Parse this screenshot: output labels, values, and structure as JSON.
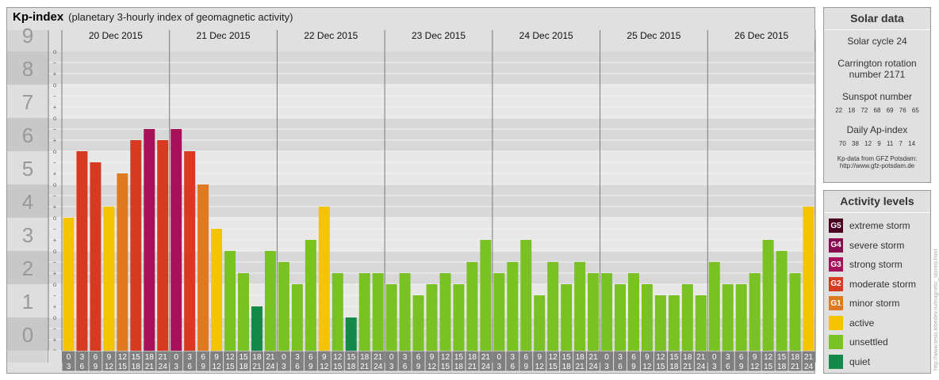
{
  "header": {
    "title": "Kp-index",
    "subtitle": "(planetary 3-hourly index of geomagnetic activity)"
  },
  "chart_data": {
    "type": "bar",
    "title": "Kp-index",
    "subtitle": "(planetary 3-hourly index of geomagnetic activity)",
    "ylim": [
      0,
      9
    ],
    "ytick_labels": [
      "0",
      "1",
      "2",
      "3",
      "4",
      "5",
      "6",
      "7",
      "8",
      "9"
    ],
    "minor_tick_labels": [
      "o",
      "+",
      "−"
    ],
    "days": [
      "20 Dec 2015",
      "21 Dec 2015",
      "22 Dec 2015",
      "23 Dec 2015",
      "24 Dec 2015",
      "25 Dec 2015",
      "26 Dec 2015"
    ],
    "hour_labels": [
      [
        "0",
        "3"
      ],
      [
        "3",
        "6"
      ],
      [
        "6",
        "9"
      ],
      [
        "9",
        "12"
      ],
      [
        "12",
        "15"
      ],
      [
        "15",
        "18"
      ],
      [
        "18",
        "21"
      ],
      [
        "21",
        "24"
      ]
    ],
    "values": [
      4.0,
      6.0,
      5.667,
      4.333,
      5.333,
      6.333,
      6.667,
      6.333,
      6.667,
      6.0,
      5.0,
      3.667,
      3.0,
      2.333,
      1.333,
      3.0,
      2.667,
      2.0,
      3.333,
      4.333,
      2.333,
      1.0,
      2.333,
      2.333,
      2.0,
      2.333,
      1.667,
      2.0,
      2.333,
      2.0,
      2.667,
      3.333,
      2.333,
      2.667,
      3.333,
      1.667,
      2.667,
      2.0,
      2.667,
      2.333,
      2.333,
      2.0,
      2.333,
      2.0,
      1.667,
      1.667,
      2.0,
      1.667,
      2.667,
      2.0,
      2.0,
      2.333,
      3.333,
      3.0,
      2.333,
      4.333
    ],
    "levels": [
      {
        "min": 9,
        "color": "#4b0022"
      },
      {
        "min": 8,
        "color": "#8a0a52"
      },
      {
        "min": 6.667,
        "color": "#a8105a"
      },
      {
        "min": 5.667,
        "color": "#d63a20"
      },
      {
        "min": 5,
        "color": "#e07a20"
      },
      {
        "min": 3.667,
        "color": "#f5c400"
      },
      {
        "min": 1.667,
        "color": "#7ac124"
      },
      {
        "min": 0,
        "color": "#138a4a"
      }
    ]
  },
  "solar": {
    "title": "Solar data",
    "cycle": "Solar cycle 24",
    "carrington1": "Carrington rotation",
    "carrington2": "number 2171",
    "sunspot_title": "Sunspot number",
    "sunspot_values": "22 18 72 68 69 76 65",
    "ap_title": "Daily Ap-index",
    "ap_values": "70 38 12 9 11 7 14",
    "source1": "Kp-data from GFZ Potsdam:",
    "source2": "http://www.gfz-potsdam.de"
  },
  "activity": {
    "title": "Activity levels",
    "items": [
      {
        "badge": "G5",
        "label": "extreme storm",
        "color": "#4b0022"
      },
      {
        "badge": "G4",
        "label": "severe storm",
        "color": "#8a0a52"
      },
      {
        "badge": "G3",
        "label": "strong storm",
        "color": "#a8105a"
      },
      {
        "badge": "G2",
        "label": "moderate storm",
        "color": "#d63a20"
      },
      {
        "badge": "G1",
        "label": "minor storm",
        "color": "#e07a20"
      },
      {
        "badge": "",
        "label": "active",
        "color": "#f5c400"
      },
      {
        "badge": "",
        "label": "unsettled",
        "color": "#7ac124"
      },
      {
        "badge": "",
        "label": "quiet",
        "color": "#138a4a"
      }
    ]
  },
  "credit": "http://www.tesis.lebedev.ru/magnetic_storms.html"
}
